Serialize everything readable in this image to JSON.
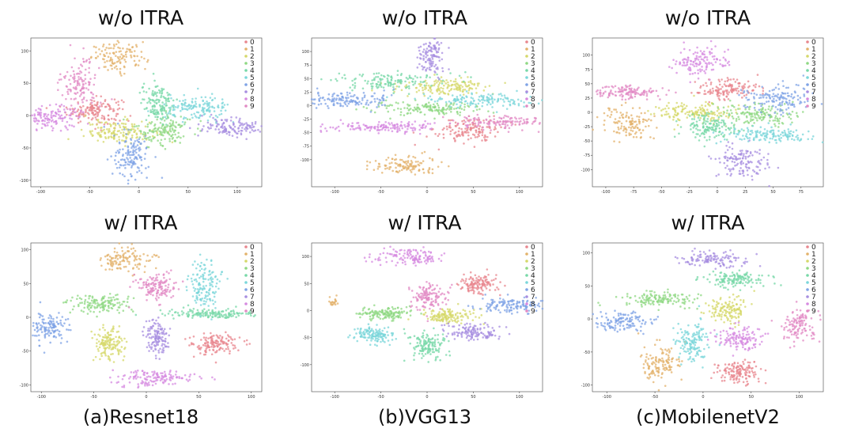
{
  "palette": [
    "#e8868e",
    "#e3b26b",
    "#d5d86a",
    "#8fd883",
    "#78d8a8",
    "#7ad6da",
    "#7fa3e6",
    "#a78ee0",
    "#d68ae0",
    "#e28ac4"
  ],
  "chart_data": [
    {
      "type": "scatter",
      "title": "w/o ITRA",
      "caption": "",
      "legend": [
        "0",
        "1",
        "2",
        "3",
        "4",
        "5",
        "6",
        "7",
        "8",
        "9"
      ],
      "legend_position": "top-right",
      "xlim": [
        -110,
        125
      ],
      "ylim": [
        -110,
        120
      ],
      "xticks": [
        -100,
        -50,
        0,
        50,
        100
      ],
      "yticks": [
        -100,
        -50,
        0,
        50,
        100
      ],
      "clusters": [
        {
          "cls": 0,
          "cx": -45,
          "cy": 8,
          "sx": 14,
          "sy": 10,
          "n": 150
        },
        {
          "cls": 1,
          "cx": -20,
          "cy": 90,
          "sx": 14,
          "sy": 11,
          "n": 120
        },
        {
          "cls": 2,
          "cx": -20,
          "cy": -25,
          "sx": 18,
          "sy": 9,
          "n": 150
        },
        {
          "cls": 3,
          "cx": 25,
          "cy": -22,
          "sx": 14,
          "sy": 12,
          "n": 140
        },
        {
          "cls": 4,
          "cx": 20,
          "cy": 20,
          "sx": 9,
          "sy": 16,
          "n": 140
        },
        {
          "cls": 5,
          "cx": 60,
          "cy": 10,
          "sx": 16,
          "sy": 10,
          "n": 140
        },
        {
          "cls": 6,
          "cx": -7,
          "cy": -65,
          "sx": 9,
          "sy": 18,
          "n": 140
        },
        {
          "cls": 7,
          "cx": 95,
          "cy": -17,
          "sx": 18,
          "sy": 7,
          "n": 130
        },
        {
          "cls": 8,
          "cx": -90,
          "cy": -3,
          "sx": 18,
          "sy": 9,
          "n": 140
        },
        {
          "cls": 9,
          "cx": -60,
          "cy": 50,
          "sx": 9,
          "sy": 18,
          "n": 130
        }
      ]
    },
    {
      "type": "scatter",
      "title": "w/o ITRA",
      "caption": "",
      "legend": [
        "0",
        "1",
        "2",
        "3",
        "4",
        "5",
        "6",
        "7",
        "8",
        "9"
      ],
      "legend_position": "top-right",
      "xlim": [
        -125,
        125
      ],
      "ylim": [
        -150,
        125
      ],
      "xticks": [
        -100,
        -50,
        0,
        50,
        100
      ],
      "yticks": [
        -100,
        -75,
        -50,
        -25,
        0,
        25,
        50,
        75,
        100
      ],
      "clusters": [
        {
          "cls": 0,
          "cx": 45,
          "cy": -45,
          "sx": 18,
          "sy": 12,
          "n": 140
        },
        {
          "cls": 1,
          "cx": -25,
          "cy": -110,
          "sx": 18,
          "sy": 9,
          "n": 120
        },
        {
          "cls": 2,
          "cx": 20,
          "cy": 35,
          "sx": 26,
          "sy": 7,
          "n": 150
        },
        {
          "cls": 3,
          "cx": -5,
          "cy": -5,
          "sx": 30,
          "sy": 6,
          "n": 150
        },
        {
          "cls": 4,
          "cx": -40,
          "cy": 45,
          "sx": 30,
          "sy": 8,
          "n": 140
        },
        {
          "cls": 5,
          "cx": 55,
          "cy": 10,
          "sx": 30,
          "sy": 6,
          "n": 140
        },
        {
          "cls": 6,
          "cx": -85,
          "cy": 10,
          "sx": 25,
          "sy": 8,
          "n": 140
        },
        {
          "cls": 7,
          "cx": 5,
          "cy": 90,
          "sx": 8,
          "sy": 18,
          "n": 120
        },
        {
          "cls": 8,
          "cx": -45,
          "cy": -40,
          "sx": 32,
          "sy": 5,
          "n": 150
        },
        {
          "cls": 9,
          "cx": 80,
          "cy": -30,
          "sx": 28,
          "sy": 6,
          "n": 130
        }
      ]
    },
    {
      "type": "scatter",
      "title": "w/o ITRA",
      "caption": "",
      "legend": [
        "0",
        "1",
        "2",
        "3",
        "4",
        "5",
        "6",
        "7",
        "8",
        "9"
      ],
      "legend_position": "top-right",
      "xlim": [
        -112,
        95
      ],
      "ylim": [
        -130,
        130
      ],
      "xticks": [
        -100,
        -75,
        -50,
        -25,
        0,
        25,
        50,
        75
      ],
      "yticks": [
        -100,
        -75,
        -50,
        -25,
        0,
        25,
        50,
        75,
        100
      ],
      "clusters": [
        {
          "cls": 0,
          "cx": 10,
          "cy": 40,
          "sx": 14,
          "sy": 10,
          "n": 140
        },
        {
          "cls": 1,
          "cx": -80,
          "cy": -20,
          "sx": 12,
          "sy": 14,
          "n": 120
        },
        {
          "cls": 2,
          "cx": -20,
          "cy": 0,
          "sx": 18,
          "sy": 9,
          "n": 150
        },
        {
          "cls": 3,
          "cx": 35,
          "cy": -5,
          "sx": 18,
          "sy": 10,
          "n": 150
        },
        {
          "cls": 4,
          "cx": -10,
          "cy": -25,
          "sx": 12,
          "sy": 10,
          "n": 140
        },
        {
          "cls": 5,
          "cx": 50,
          "cy": -40,
          "sx": 22,
          "sy": 8,
          "n": 140
        },
        {
          "cls": 6,
          "cx": 55,
          "cy": 25,
          "sx": 16,
          "sy": 12,
          "n": 140
        },
        {
          "cls": 7,
          "cx": 20,
          "cy": -85,
          "sx": 12,
          "sy": 14,
          "n": 130
        },
        {
          "cls": 8,
          "cx": -15,
          "cy": 90,
          "sx": 12,
          "sy": 14,
          "n": 130
        },
        {
          "cls": 9,
          "cx": -80,
          "cy": 35,
          "sx": 16,
          "sy": 6,
          "n": 130
        }
      ]
    },
    {
      "type": "scatter",
      "title": "w/ ITRA",
      "caption": "(a)Resnet18",
      "legend": [
        "0",
        "1",
        "2",
        "3",
        "4",
        "5",
        "6",
        "7",
        "8",
        "9"
      ],
      "legend_position": "top-right",
      "xlim": [
        -110,
        110
      ],
      "ylim": [
        -110,
        110
      ],
      "xticks": [
        -100,
        -50,
        0,
        50,
        100
      ],
      "yticks": [
        -100,
        -50,
        0,
        50,
        100
      ],
      "clusters": [
        {
          "cls": 0,
          "cx": 65,
          "cy": -40,
          "sx": 12,
          "sy": 8,
          "n": 140
        },
        {
          "cls": 1,
          "cx": -20,
          "cy": 85,
          "sx": 12,
          "sy": 10,
          "n": 120
        },
        {
          "cls": 2,
          "cx": -35,
          "cy": -40,
          "sx": 7,
          "sy": 12,
          "n": 140
        },
        {
          "cls": 3,
          "cx": -45,
          "cy": 20,
          "sx": 14,
          "sy": 7,
          "n": 140
        },
        {
          "cls": 4,
          "cx": 60,
          "cy": 5,
          "sx": 22,
          "sy": 4,
          "n": 150
        },
        {
          "cls": 5,
          "cx": 55,
          "cy": 45,
          "sx": 8,
          "sy": 18,
          "n": 140
        },
        {
          "cls": 6,
          "cx": -95,
          "cy": -15,
          "sx": 9,
          "sy": 10,
          "n": 130
        },
        {
          "cls": 7,
          "cx": 10,
          "cy": -30,
          "sx": 6,
          "sy": 14,
          "n": 130
        },
        {
          "cls": 8,
          "cx": 10,
          "cy": -90,
          "sx": 20,
          "sy": 6,
          "n": 140
        },
        {
          "cls": 9,
          "cx": 10,
          "cy": 45,
          "sx": 10,
          "sy": 10,
          "n": 140
        }
      ]
    },
    {
      "type": "scatter",
      "title": "w/ ITRA",
      "caption": "(b)VGG13",
      "legend": [
        "0",
        "1",
        "2",
        "3",
        "4",
        "5",
        "6",
        "7",
        "8",
        "9"
      ],
      "legend_position": "top-right",
      "xlim": [
        -125,
        125
      ],
      "ylim": [
        -150,
        125
      ],
      "xticks": [
        -100,
        -50,
        0,
        50,
        100
      ],
      "yticks": [
        -100,
        -50,
        0,
        50,
        100
      ],
      "clusters": [
        {
          "cls": 0,
          "cx": 55,
          "cy": 50,
          "sx": 10,
          "sy": 10,
          "n": 130
        },
        {
          "cls": 1,
          "cx": -100,
          "cy": 15,
          "sx": 4,
          "sy": 4,
          "n": 20
        },
        {
          "cls": 2,
          "cx": 20,
          "cy": -10,
          "sx": 14,
          "sy": 7,
          "n": 140
        },
        {
          "cls": 3,
          "cx": -45,
          "cy": -5,
          "sx": 14,
          "sy": 6,
          "n": 140
        },
        {
          "cls": 4,
          "cx": 0,
          "cy": -65,
          "sx": 10,
          "sy": 12,
          "n": 140
        },
        {
          "cls": 5,
          "cx": -60,
          "cy": -45,
          "sx": 10,
          "sy": 8,
          "n": 130
        },
        {
          "cls": 6,
          "cx": 90,
          "cy": 10,
          "sx": 16,
          "sy": 8,
          "n": 130
        },
        {
          "cls": 7,
          "cx": 50,
          "cy": -40,
          "sx": 16,
          "sy": 7,
          "n": 130
        },
        {
          "cls": 8,
          "cx": -15,
          "cy": 100,
          "sx": 18,
          "sy": 8,
          "n": 130
        },
        {
          "cls": 9,
          "cx": 0,
          "cy": 25,
          "sx": 10,
          "sy": 12,
          "n": 130
        }
      ]
    },
    {
      "type": "scatter",
      "title": "w/ ITRA",
      "caption": "(c)MobilenetV2",
      "legend": [
        "0",
        "1",
        "2",
        "3",
        "4",
        "5",
        "6",
        "7",
        "8",
        "9"
      ],
      "legend_position": "top-right",
      "xlim": [
        -115,
        125
      ],
      "ylim": [
        -110,
        115
      ],
      "xticks": [
        -100,
        -50,
        0,
        50,
        100
      ],
      "yticks": [
        -100,
        -50,
        0,
        50,
        100
      ],
      "clusters": [
        {
          "cls": 0,
          "cx": 35,
          "cy": -80,
          "sx": 12,
          "sy": 9,
          "n": 140
        },
        {
          "cls": 1,
          "cx": -45,
          "cy": -65,
          "sx": 10,
          "sy": 12,
          "n": 130
        },
        {
          "cls": 2,
          "cx": 25,
          "cy": 15,
          "sx": 10,
          "sy": 10,
          "n": 130
        },
        {
          "cls": 3,
          "cx": -45,
          "cy": 30,
          "sx": 18,
          "sy": 6,
          "n": 140
        },
        {
          "cls": 4,
          "cx": 30,
          "cy": 60,
          "sx": 16,
          "sy": 6,
          "n": 140
        },
        {
          "cls": 5,
          "cx": -10,
          "cy": -35,
          "sx": 9,
          "sy": 16,
          "n": 140
        },
        {
          "cls": 6,
          "cx": -85,
          "cy": -5,
          "sx": 16,
          "sy": 8,
          "n": 130
        },
        {
          "cls": 7,
          "cx": 10,
          "cy": 90,
          "sx": 18,
          "sy": 6,
          "n": 120
        },
        {
          "cls": 8,
          "cx": 40,
          "cy": -30,
          "sx": 12,
          "sy": 9,
          "n": 130
        },
        {
          "cls": 9,
          "cx": 100,
          "cy": -10,
          "sx": 9,
          "sy": 12,
          "n": 120
        }
      ]
    }
  ]
}
